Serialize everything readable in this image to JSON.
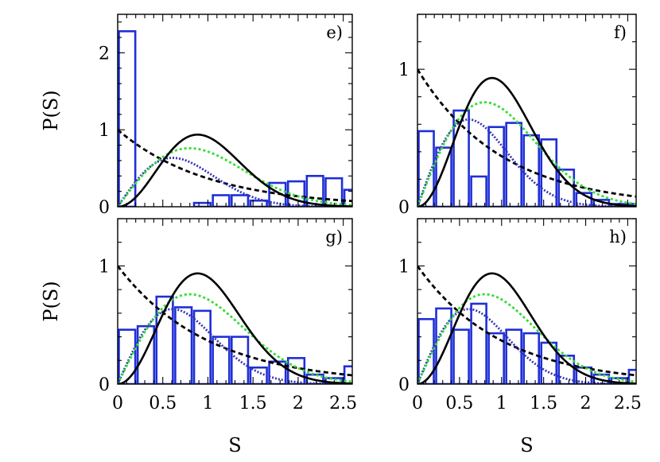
{
  "chart_data": {
    "type": "bar",
    "xlabel": "S",
    "ylabel": "P(S)",
    "xlim": [
      0,
      2.6
    ],
    "x_ticks": [
      "0",
      "0.5",
      "1",
      "1.5",
      "2",
      "2.5"
    ],
    "bin_width": 0.2083,
    "curve_styles": {
      "poisson": {
        "color": "#000000",
        "dash": "6,4"
      },
      "goe": {
        "color": "#33dd33",
        "dash": "3,3"
      },
      "gue": {
        "color": "#000000",
        "dash": ""
      },
      "intermediate": {
        "color": "#3333bb",
        "dash": "2,2"
      }
    },
    "hist_color": "#1f2fd6",
    "panels": [
      {
        "label": "e)",
        "ylim": [
          0,
          2.5
        ],
        "y_ticks": [
          "0",
          "1",
          "2"
        ],
        "histogram": [
          2.28,
          0.0,
          0.0,
          0.0,
          0.05,
          0.15,
          0.15,
          0.08,
          0.31,
          0.33,
          0.4,
          0.37,
          0.22
        ]
      },
      {
        "label": "f)",
        "ylim": [
          0,
          1.4
        ],
        "y_ticks": [
          "0",
          "1"
        ],
        "histogram": [
          0.55,
          0.43,
          0.7,
          0.22,
          0.58,
          0.61,
          0.52,
          0.49,
          0.27,
          0.1,
          0.05,
          0.02,
          0.02
        ]
      },
      {
        "label": "g)",
        "ylim": [
          0,
          1.4
        ],
        "y_ticks": [
          "0",
          "1"
        ],
        "histogram": [
          0.46,
          0.49,
          0.74,
          0.65,
          0.62,
          0.4,
          0.4,
          0.14,
          0.19,
          0.22,
          0.08,
          0.05,
          0.15
        ]
      },
      {
        "label": "h)",
        "ylim": [
          0,
          1.4
        ],
        "y_ticks": [
          "0",
          "1"
        ],
        "histogram": [
          0.55,
          0.64,
          0.46,
          0.68,
          0.43,
          0.46,
          0.43,
          0.35,
          0.24,
          0.14,
          0.08,
          0.05,
          0.12
        ]
      }
    ]
  }
}
